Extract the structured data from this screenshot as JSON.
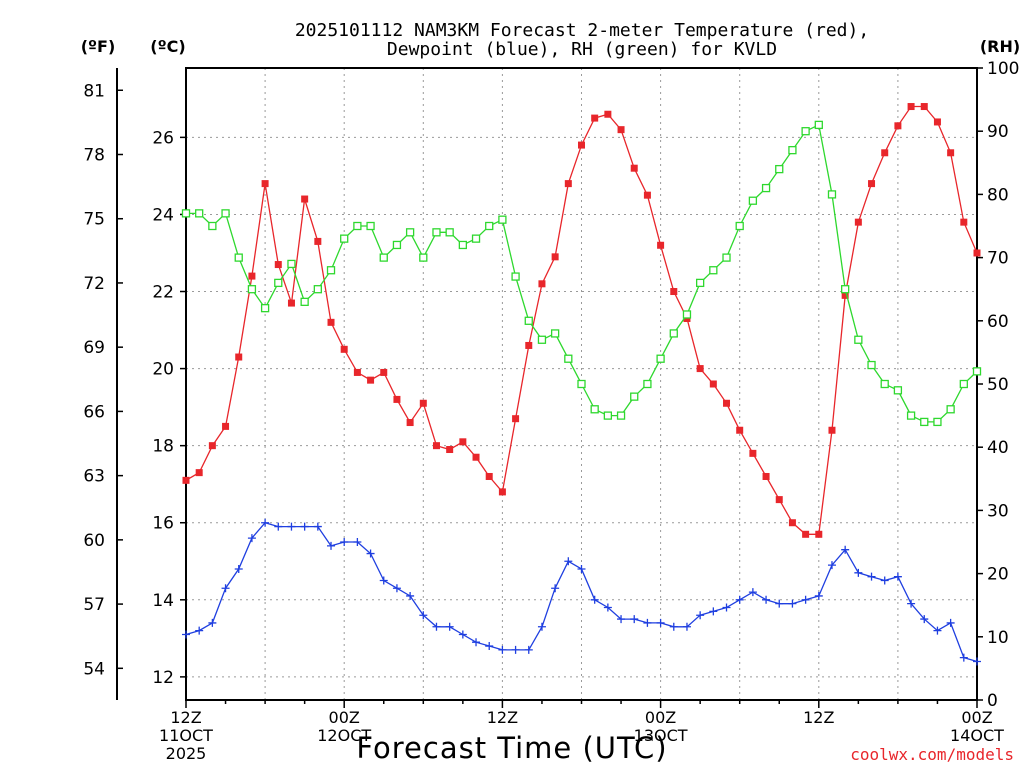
{
  "chart_data": {
    "type": "line",
    "title_line1": "2025101112 NAM3KM Forecast 2-meter Temperature (red),",
    "title_line2": "Dewpoint (blue), RH (green) for KVLD",
    "xlabel": "Forecast Time (UTC)",
    "credit": "coolwx.com/models",
    "unit_f": "(ºF)",
    "unit_c": "(ºC)",
    "unit_rh": "(RH)",
    "x_ticks": [
      {
        "hour": 0,
        "top": "12Z",
        "mid": "11OCT",
        "bot": "2025"
      },
      {
        "hour": 12,
        "top": "00Z",
        "mid": "12OCT",
        "bot": ""
      },
      {
        "hour": 24,
        "top": "12Z",
        "mid": "",
        "bot": ""
      },
      {
        "hour": 36,
        "top": "00Z",
        "mid": "13OCT",
        "bot": ""
      },
      {
        "hour": 48,
        "top": "12Z",
        "mid": "",
        "bot": ""
      },
      {
        "hour": 60,
        "top": "00Z",
        "mid": "14OCT",
        "bot": ""
      }
    ],
    "xlim": [
      0,
      60
    ],
    "ylim_c": [
      11.4,
      27.8
    ],
    "yticks_c": [
      12,
      14,
      16,
      18,
      20,
      22,
      24,
      26
    ],
    "yticks_f": [
      54,
      57,
      60,
      63,
      66,
      69,
      72,
      75,
      78,
      81
    ],
    "ylim_rh": [
      0,
      100
    ],
    "yticks_rh": [
      0,
      10,
      20,
      30,
      40,
      50,
      60,
      70,
      80,
      90,
      100
    ],
    "series": [
      {
        "name": "Temperature",
        "color": "#e8262b",
        "marker": "filled-square",
        "axis": "c",
        "values": [
          17.1,
          17.3,
          18.0,
          18.5,
          20.3,
          22.4,
          24.8,
          22.7,
          21.7,
          24.4,
          23.3,
          21.2,
          20.5,
          19.9,
          19.7,
          19.9,
          19.2,
          18.6,
          19.1,
          18.0,
          17.9,
          18.1,
          17.7,
          17.2,
          16.8,
          18.7,
          20.6,
          22.2,
          22.9,
          24.8,
          25.8,
          26.5,
          26.6,
          26.2,
          25.2,
          24.5,
          23.2,
          22.0,
          21.3,
          20.0,
          19.6,
          19.1,
          18.4,
          17.8,
          17.2,
          16.6,
          16.0,
          15.7,
          15.7,
          18.4,
          21.9,
          23.8,
          24.8,
          25.6,
          26.3,
          26.8,
          26.8,
          26.4,
          25.6,
          23.8,
          23.0
        ]
      },
      {
        "name": "Dewpoint",
        "color": "#1f3fe0",
        "marker": "plus",
        "axis": "c",
        "values": [
          13.1,
          13.2,
          13.4,
          14.3,
          14.8,
          15.6,
          16.0,
          15.9,
          15.9,
          15.9,
          15.9,
          15.4,
          15.5,
          15.5,
          15.2,
          14.5,
          14.3,
          14.1,
          13.6,
          13.3,
          13.3,
          13.1,
          12.9,
          12.8,
          12.7,
          12.7,
          12.7,
          13.3,
          14.3,
          15.0,
          14.8,
          14.0,
          13.8,
          13.5,
          13.5,
          13.4,
          13.4,
          13.3,
          13.3,
          13.6,
          13.7,
          13.8,
          14.0,
          14.2,
          14.0,
          13.9,
          13.9,
          14.0,
          14.1,
          14.9,
          15.3,
          14.7,
          14.6,
          14.5,
          14.6,
          13.9,
          13.5,
          13.2,
          13.4,
          12.5,
          12.4
        ]
      },
      {
        "name": "RH",
        "color": "#2ed82e",
        "marker": "open-square",
        "axis": "rh",
        "values": [
          77,
          77,
          75,
          77,
          70,
          65,
          62,
          66,
          69,
          63,
          65,
          68,
          73,
          75,
          75,
          70,
          72,
          74,
          70,
          74,
          74,
          72,
          73,
          75,
          76,
          67,
          60,
          57,
          58,
          54,
          50,
          46,
          45,
          45,
          48,
          50,
          54,
          58,
          61,
          66,
          68,
          70,
          75,
          79,
          81,
          84,
          87,
          90,
          91,
          80,
          65,
          57,
          53,
          50,
          49,
          45,
          44,
          44,
          46,
          50,
          52
        ]
      }
    ]
  }
}
